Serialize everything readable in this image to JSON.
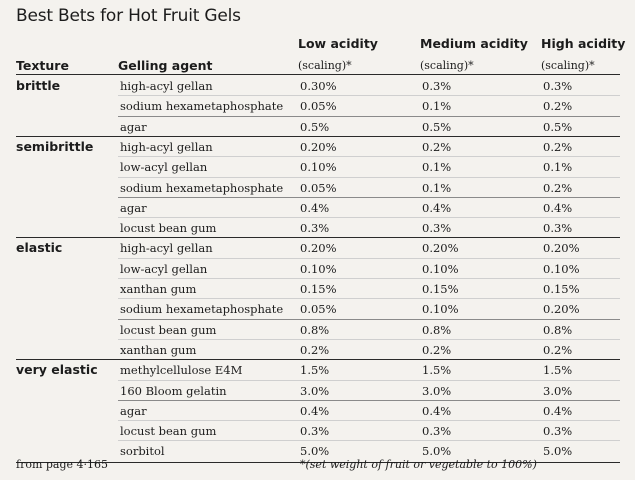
{
  "title": "Best Bets for Hot Fruit Gels",
  "headers": {
    "texture": "Texture",
    "agent": "Gelling agent",
    "low": "Low acidity",
    "medium": "Medium acidity",
    "high": "High acidity",
    "scaling": "(scaling)*"
  },
  "groups": [
    {
      "texture": "brittle",
      "subgroups": [
        [
          {
            "agent": "high-acyl gellan",
            "low": "0.30%",
            "medium": "0.3%",
            "high": "0.3%"
          },
          {
            "agent": "sodium hexametaphosphate",
            "low": "0.05%",
            "medium": "0.1%",
            "high": "0.2%"
          }
        ],
        [
          {
            "agent": "agar",
            "low": "0.5%",
            "medium": "0.5%",
            "high": "0.5%"
          }
        ]
      ]
    },
    {
      "texture": "semibrittle",
      "subgroups": [
        [
          {
            "agent": "high-acyl gellan",
            "low": "0.20%",
            "medium": "0.2%",
            "high": "0.2%"
          },
          {
            "agent": "low-acyl gellan",
            "low": "0.10%",
            "medium": "0.1%",
            "high": "0.1%"
          },
          {
            "agent": "sodium hexametaphosphate",
            "low": "0.05%",
            "medium": "0.1%",
            "high": "0.2%"
          }
        ],
        [
          {
            "agent": "agar",
            "low": "0.4%",
            "medium": "0.4%",
            "high": "0.4%"
          },
          {
            "agent": "locust bean gum",
            "low": "0.3%",
            "medium": "0.3%",
            "high": "0.3%"
          }
        ]
      ]
    },
    {
      "texture": "elastic",
      "subgroups": [
        [
          {
            "agent": "high-acyl gellan",
            "low": "0.20%",
            "medium": "0.20%",
            "high": "0.20%"
          },
          {
            "agent": "low-acyl gellan",
            "low": "0.10%",
            "medium": "0.10%",
            "high": "0.10%"
          },
          {
            "agent": "xanthan gum",
            "low": "0.15%",
            "medium": "0.15%",
            "high": "0.15%"
          },
          {
            "agent": "sodium hexametaphosphate",
            "low": "0.05%",
            "medium": "0.10%",
            "high": "0.20%"
          }
        ],
        [
          {
            "agent": "locust bean gum",
            "low": "0.8%",
            "medium": "0.8%",
            "high": "0.8%"
          },
          {
            "agent": "xanthan gum",
            "low": "0.2%",
            "medium": "0.2%",
            "high": "0.2%"
          }
        ]
      ]
    },
    {
      "texture": "very elastic",
      "subgroups": [
        [
          {
            "agent": "methylcellulose E4M",
            "low": "1.5%",
            "medium": "1.5%",
            "high": "1.5%"
          },
          {
            "agent": "160 Bloom gelatin",
            "low": "3.0%",
            "medium": "3.0%",
            "high": "3.0%"
          }
        ],
        [
          {
            "agent": "agar",
            "low": "0.4%",
            "medium": "0.4%",
            "high": "0.4%"
          },
          {
            "agent": "locust bean gum",
            "low": "0.3%",
            "medium": "0.3%",
            "high": "0.3%"
          },
          {
            "agent": "sorbitol",
            "low": "5.0%",
            "medium": "5.0%",
            "high": "5.0%"
          }
        ]
      ]
    }
  ],
  "footer": {
    "source": "from page 4·165",
    "note": "*(set weight of fruit or vegetable to 100%)"
  }
}
